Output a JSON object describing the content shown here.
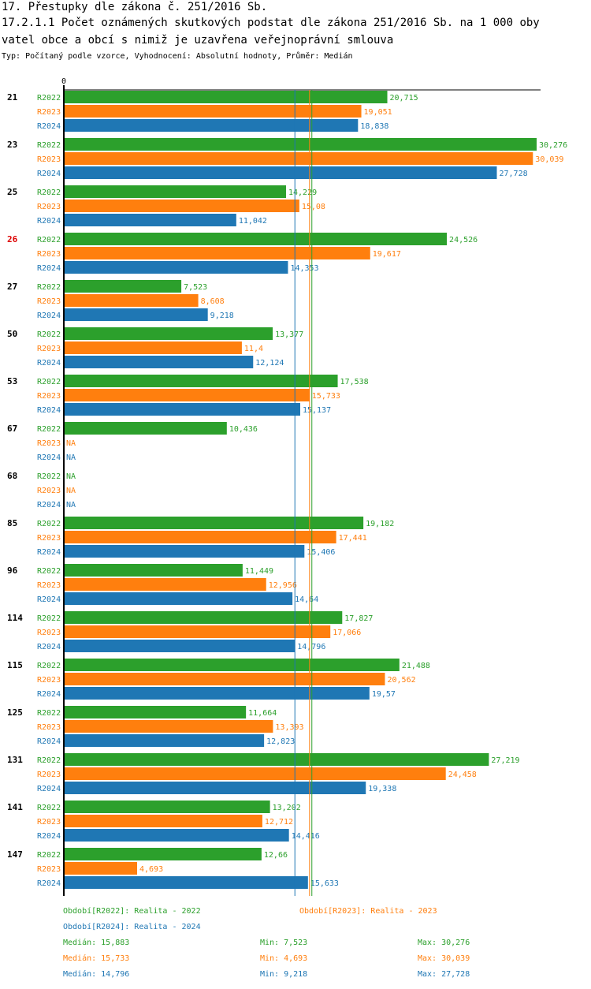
{
  "title_line1": "17. Přestupky dle zákona č. 251/2016 Sb.",
  "title_line2": "17.2.1.1 Počet oznámených skutkových podstat dle zákona 251/2016 Sb. na 1 000 oby",
  "title_line3": "vatel obce a obcí s nimiž je uzavřena veřejnoprávní smlouva",
  "subtitle": "Typ: Počítaný podle vzorce, Vyhodnocení: Absolutní hodnoty, Průměr: Medián",
  "colors": {
    "R2022": "#2ca02c",
    "R2023": "#ff7f0e",
    "R2024": "#1f77b4",
    "highlight": "#dd0000",
    "text": "#000000"
  },
  "chart_data": {
    "type": "bar",
    "orientation": "horizontal",
    "axis_zero_label": "0",
    "xlim": [
      0,
      30.276
    ],
    "na_label": "NA",
    "categories": [
      "21",
      "23",
      "25",
      "26",
      "27",
      "50",
      "53",
      "67",
      "68",
      "85",
      "96",
      "114",
      "115",
      "125",
      "131",
      "141",
      "147"
    ],
    "highlighted_category": "26",
    "series": [
      {
        "name": "R2022",
        "values": [
          20.715,
          30.276,
          14.229,
          24.526,
          7.523,
          13.377,
          17.538,
          10.436,
          null,
          19.182,
          11.449,
          17.827,
          21.488,
          11.664,
          27.219,
          13.202,
          12.66
        ],
        "labels": [
          "20,715",
          "30,276",
          "14,229",
          "24,526",
          "7,523",
          "13,377",
          "17,538",
          "10,436",
          "NA",
          "19,182",
          "11,449",
          "17,827",
          "21,488",
          "11,664",
          "27,219",
          "13,202",
          "12,66"
        ]
      },
      {
        "name": "R2023",
        "values": [
          19.051,
          30.039,
          15.08,
          19.617,
          8.608,
          11.4,
          15.733,
          null,
          null,
          17.441,
          12.956,
          17.066,
          20.562,
          13.393,
          24.458,
          12.712,
          4.693
        ],
        "labels": [
          "19,051",
          "30,039",
          "15,08",
          "19,617",
          "8,608",
          "11,4",
          "15,733",
          "NA",
          "NA",
          "17,441",
          "12,956",
          "17,066",
          "20,562",
          "13,393",
          "24,458",
          "12,712",
          "4,693"
        ]
      },
      {
        "name": "R2024",
        "values": [
          18.838,
          27.728,
          11.042,
          14.353,
          9.218,
          12.124,
          15.137,
          null,
          null,
          15.406,
          14.64,
          14.796,
          19.57,
          12.823,
          19.338,
          14.416,
          15.633
        ],
        "labels": [
          "18,838",
          "27,728",
          "11,042",
          "14,353",
          "9,218",
          "12,124",
          "15,137",
          "NA",
          "NA",
          "15,406",
          "14,64",
          "14,796",
          "19,57",
          "12,823",
          "19,338",
          "14,416",
          "15,633"
        ]
      }
    ],
    "medians": {
      "R2022": 15.883,
      "R2023": 15.733,
      "R2024": 14.796
    }
  },
  "legend": [
    {
      "series": "R2022",
      "text": "Období[R2022]: Realita - 2022"
    },
    {
      "series": "R2023",
      "text": "Období[R2023]: Realita - 2023"
    },
    {
      "series": "R2024",
      "text": "Období[R2024]: Realita - 2024"
    }
  ],
  "stats": [
    {
      "series": "R2022",
      "median": "Medián: 15,883",
      "min": "Min: 7,523",
      "max": "Max: 30,276"
    },
    {
      "series": "R2023",
      "median": "Medián: 15,733",
      "min": "Min: 4,693",
      "max": "Max: 30,039"
    },
    {
      "series": "R2024",
      "median": "Medián: 14,796",
      "min": "Min: 9,218",
      "max": "Max: 27,728"
    }
  ]
}
